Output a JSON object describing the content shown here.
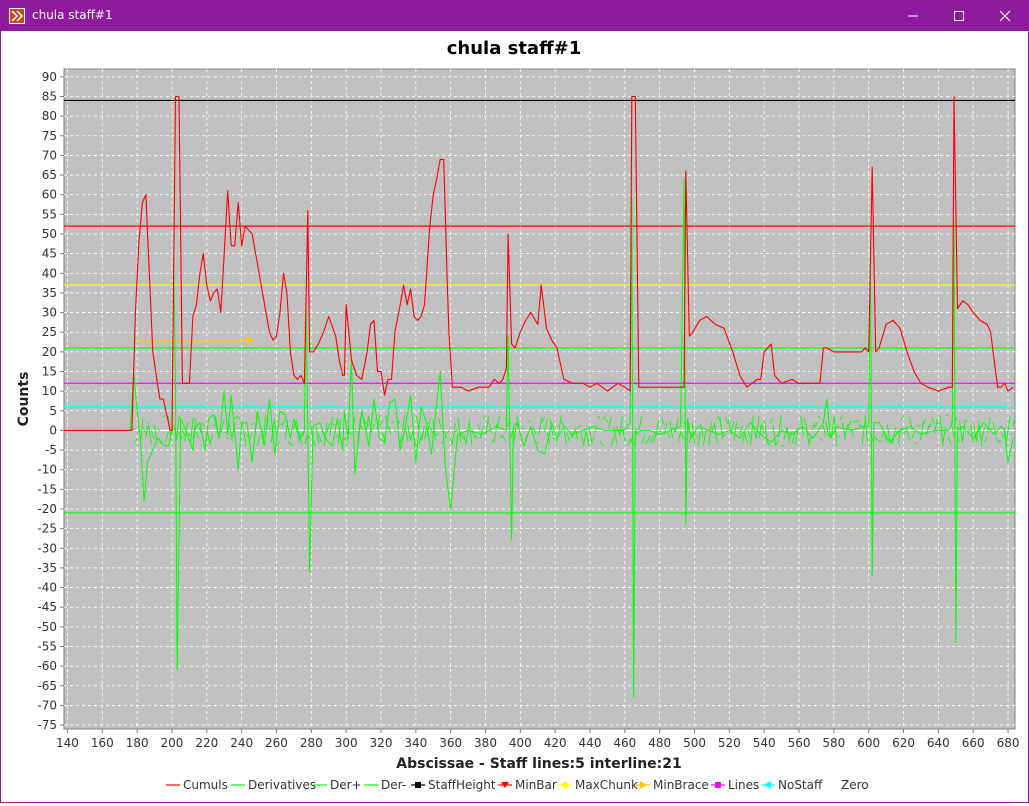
{
  "window": {
    "title": "chula staff#1",
    "border_color": "#8e1a9c"
  },
  "chart_data": {
    "type": "line",
    "title": "chula staff#1",
    "xlabel": "Abscissae - Staff lines:5 interline:21",
    "ylabel": "Counts",
    "xlim": [
      138,
      684
    ],
    "ylim": [
      -76,
      92
    ],
    "xticks": [
      140,
      160,
      180,
      200,
      220,
      240,
      260,
      280,
      300,
      320,
      340,
      360,
      380,
      400,
      420,
      440,
      460,
      480,
      500,
      520,
      540,
      560,
      580,
      600,
      620,
      640,
      660,
      680
    ],
    "yticks": [
      -75,
      -70,
      -65,
      -60,
      -55,
      -50,
      -45,
      -40,
      -35,
      -30,
      -25,
      -20,
      -15,
      -10,
      -5,
      0,
      5,
      10,
      15,
      20,
      25,
      30,
      35,
      40,
      45,
      50,
      55,
      60,
      65,
      70,
      75,
      80,
      85,
      90
    ],
    "grid": true,
    "legend_position": "bottom",
    "background": "#c0c0c0",
    "series": [
      {
        "name": "Cumuls",
        "color": "#ff0000",
        "x": [
          138,
          177,
          179,
          181,
          183,
          185,
          187,
          189,
          193,
          195,
          199,
          200,
          202,
          204,
          206,
          210,
          212,
          214,
          216,
          218,
          220,
          222,
          224,
          226,
          228,
          230,
          232,
          234,
          236,
          238,
          240,
          242,
          246,
          250,
          254,
          256,
          258,
          260,
          262,
          264,
          266,
          268,
          270,
          272,
          274,
          276,
          278,
          279,
          281,
          284,
          287,
          290,
          294,
          296,
          298,
          299,
          300,
          303,
          306,
          309,
          312,
          314,
          316,
          318,
          320,
          322,
          324,
          326,
          328,
          331,
          333,
          335,
          337,
          339,
          341,
          343,
          345,
          348,
          350,
          352,
          354,
          356,
          358,
          359,
          361,
          366,
          370,
          376,
          382,
          385,
          388,
          390,
          392,
          393,
          395,
          397,
          400,
          403,
          406,
          410,
          412,
          415,
          418,
          421,
          425,
          430,
          436,
          440,
          444,
          450,
          456,
          460,
          463,
          464,
          466,
          468,
          470,
          474,
          480,
          486,
          492,
          494,
          495,
          497,
          499,
          503,
          507,
          512,
          517,
          522,
          526,
          530,
          536,
          538,
          540,
          544,
          546,
          550,
          556,
          560,
          566,
          572,
          574,
          576,
          580,
          584,
          590,
          596,
          598,
          600,
          602,
          604,
          606,
          610,
          614,
          618,
          622,
          626,
          630,
          634,
          640,
          646,
          648,
          649,
          651,
          654,
          657,
          660,
          664,
          668,
          670,
          672,
          674,
          676,
          678,
          680,
          683
        ],
        "y": [
          0,
          0,
          30,
          48,
          58,
          60,
          40,
          20,
          8,
          8,
          0,
          0,
          85,
          85,
          12,
          12,
          29,
          32,
          40,
          45,
          37,
          33,
          35,
          36,
          30,
          45,
          61,
          47,
          47,
          58,
          47,
          52,
          50,
          40,
          30,
          25,
          23,
          24,
          30,
          40,
          35,
          20,
          14,
          13,
          14,
          12,
          56,
          20,
          20,
          22,
          25,
          29,
          24,
          18,
          14,
          14,
          32,
          18,
          14,
          13,
          20,
          27,
          28,
          15,
          15,
          9,
          13,
          13,
          25,
          32,
          37,
          32,
          36,
          29,
          28,
          29,
          32,
          52,
          60,
          64,
          69,
          69,
          38,
          25,
          11,
          11,
          10,
          11,
          11,
          13,
          12,
          13,
          16,
          50,
          22,
          21,
          25,
          28,
          30,
          27,
          37,
          26,
          23,
          21,
          13,
          12,
          12,
          11,
          12,
          10,
          12,
          11,
          10,
          85,
          85,
          11,
          11,
          11,
          11,
          11,
          11,
          11,
          66,
          24,
          25,
          28,
          29,
          27,
          26,
          20,
          14,
          11,
          13,
          13,
          20,
          22,
          14,
          12,
          13,
          12,
          12,
          12,
          21,
          21,
          20,
          20,
          20,
          20,
          21,
          20,
          67,
          20,
          21,
          27,
          28,
          26,
          20,
          15,
          12,
          11,
          10,
          11,
          11,
          85,
          31,
          33,
          32,
          30,
          28,
          27,
          25,
          18,
          11,
          11,
          12,
          10,
          11
        ]
      },
      {
        "name": "Derivatives",
        "color": "#00ff00",
        "x": [
          138,
          176,
          178,
          180,
          182,
          184,
          186,
          188,
          190,
          192,
          194,
          196,
          198,
          200,
          201,
          202,
          203,
          205,
          208,
          212,
          213,
          214,
          216,
          219,
          221,
          224,
          227,
          230,
          232,
          234,
          236,
          238,
          240,
          243,
          246,
          249,
          253,
          256,
          259,
          262,
          265,
          268,
          270,
          273,
          276,
          277,
          278,
          279,
          281,
          285,
          288,
          292,
          295,
          298,
          299,
          301,
          303,
          305,
          309,
          313,
          316,
          319,
          322,
          325,
          328,
          331,
          334,
          337,
          340,
          343,
          346,
          349,
          352,
          354,
          357,
          360,
          364,
          370,
          378,
          386,
          392,
          393,
          395,
          396,
          398,
          402,
          406,
          410,
          414,
          418,
          421,
          425,
          430,
          436,
          442,
          448,
          454,
          460,
          463,
          464,
          465,
          466,
          467,
          469,
          474,
          480,
          486,
          492,
          494,
          495,
          496,
          498,
          502,
          508,
          514,
          520,
          526,
          532,
          538,
          544,
          550,
          556,
          562,
          568,
          574,
          576,
          578,
          582,
          590,
          598,
          600,
          601,
          602,
          603,
          606,
          612,
          618,
          624,
          630,
          638,
          646,
          648,
          649,
          650,
          651,
          652,
          654,
          660,
          666,
          672,
          676,
          678,
          680,
          683
        ],
        "y": [
          0,
          0,
          15,
          5,
          -3,
          -18,
          -8,
          -6,
          -4,
          -2,
          -3,
          -4,
          -4,
          0,
          44,
          10,
          -61,
          3,
          0,
          -5,
          0,
          1,
          2,
          -5,
          3,
          4,
          -2,
          10,
          -1,
          9,
          0,
          -10,
          2,
          2,
          -8,
          5,
          -4,
          8,
          -6,
          5,
          4,
          -2,
          3,
          -2,
          0,
          33,
          0,
          -36,
          1,
          2,
          -2,
          -4,
          3,
          -5,
          5,
          -2,
          18,
          -11,
          5,
          -4,
          8,
          -2,
          -3,
          7,
          8,
          -5,
          1,
          9,
          -8,
          6,
          2,
          -6,
          7,
          15,
          -10,
          -20,
          -1,
          0,
          -1,
          1,
          0,
          24,
          -28,
          1,
          2,
          -4,
          1,
          -5,
          -6,
          2,
          -2,
          1,
          -1,
          0,
          1,
          0,
          0,
          0,
          2,
          59,
          -68,
          0,
          -1,
          0,
          0,
          -1,
          0,
          1,
          64,
          -24,
          3,
          -2,
          1,
          0,
          -1,
          0,
          -2,
          2,
          -1,
          -3,
          0,
          -1,
          1,
          -2,
          2,
          8,
          -2,
          1,
          0,
          1,
          1,
          44,
          -37,
          2,
          2,
          -3,
          0,
          1,
          -1,
          0,
          0,
          2,
          53,
          -54,
          1,
          0,
          1,
          -2,
          2,
          -1,
          1,
          0,
          -8,
          -2
        ],
        "dense_fill": true
      },
      {
        "name": "Der+",
        "color": "#00ff00",
        "constant": 21
      },
      {
        "name": "Der-",
        "color": "#00ff00",
        "constant": -21
      },
      {
        "name": "StaffHeight",
        "color": "#000000",
        "constant": 84
      },
      {
        "name": "MinBar",
        "color": "#ff0000",
        "constant": 52
      },
      {
        "name": "MaxChunk",
        "color": "#ffff00",
        "constant": 37
      },
      {
        "name": "MinBrace",
        "color": "#ffc800",
        "x": [
          178,
          246
        ],
        "y": [
          23,
          23
        ]
      },
      {
        "name": "Lines",
        "color": "#ff00ff",
        "constant": 12
      },
      {
        "name": "NoStaff",
        "color": "#00ffff",
        "constant": 6
      },
      {
        "name": "Zero",
        "color": "#ffffff",
        "constant": 0
      }
    ],
    "legend": [
      {
        "name": "Cumuls",
        "color": "#ff0000",
        "marker": "line"
      },
      {
        "name": "Derivatives",
        "color": "#00ff00",
        "marker": "line"
      },
      {
        "name": "Der+",
        "color": "#00ff00",
        "marker": "line"
      },
      {
        "name": "Der-",
        "color": "#00ff00",
        "marker": "line"
      },
      {
        "name": "StaffHeight",
        "color": "#000000",
        "marker": "square"
      },
      {
        "name": "MinBar",
        "color": "#ff0000",
        "marker": "triangle-down"
      },
      {
        "name": "MaxChunk",
        "color": "#ffff00",
        "marker": "diamond"
      },
      {
        "name": "MinBrace",
        "color": "#ffc800",
        "marker": "triangle-right"
      },
      {
        "name": "Lines",
        "color": "#ff00ff",
        "marker": "square"
      },
      {
        "name": "NoStaff",
        "color": "#00ffff",
        "marker": "triangle-left"
      },
      {
        "name": "Zero",
        "color": "#ffffff",
        "marker": "none"
      }
    ]
  }
}
